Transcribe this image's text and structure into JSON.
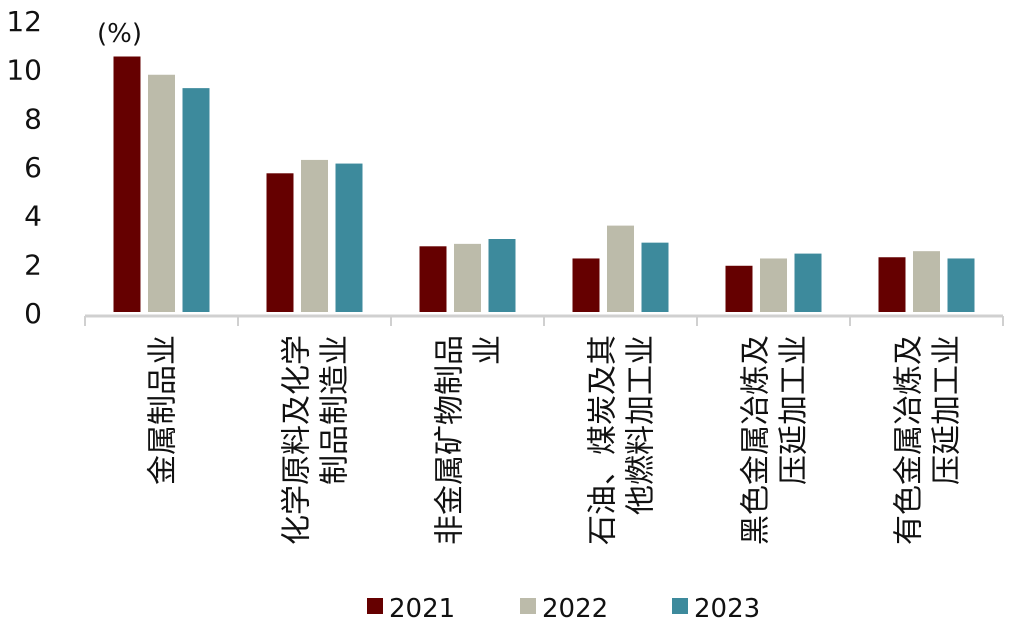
{
  "chart_data": {
    "type": "bar",
    "unit_label": "(%)",
    "categories": [
      [
        "金属制品业"
      ],
      [
        "化学原料及化学",
        "制品制造业"
      ],
      [
        "非金属矿物制品",
        "业"
      ],
      [
        "石油、煤炭及其",
        "他燃料加工业"
      ],
      [
        "黑色金属冶炼及",
        "压延加工业"
      ],
      [
        "有色金属冶炼及",
        "压延加工业"
      ]
    ],
    "series": [
      {
        "name": "2021",
        "color": "#650000",
        "values": [
          10.5,
          5.7,
          2.7,
          2.2,
          1.9,
          2.25
        ]
      },
      {
        "name": "2022",
        "color": "#BCBBAA",
        "values": [
          9.75,
          6.25,
          2.8,
          3.55,
          2.2,
          2.5
        ]
      },
      {
        "name": "2023",
        "color": "#3D8A9C",
        "values": [
          9.2,
          6.1,
          3.0,
          2.85,
          2.4,
          2.2
        ]
      }
    ],
    "yticks": [
      0,
      2,
      4,
      6,
      8,
      10,
      12
    ],
    "ylim": [
      0,
      12
    ],
    "grid": false,
    "legend_position": "bottom"
  }
}
